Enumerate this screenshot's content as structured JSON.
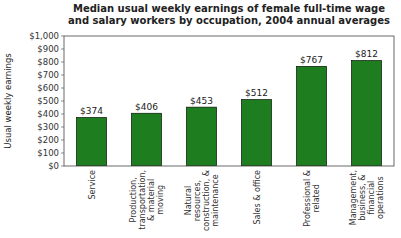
{
  "chart_data": {
    "type": "bar",
    "title": "Median usual weekly earnings of female full-time wage\nand salary workers by occupation, 2004 annual averages",
    "ylabel": "Usual weekly earnings",
    "categories": [
      "Service",
      "Production,\ntransportation,\n& material\nmoving",
      "Natural\nresources,\nconstruction, &\nmaintenance",
      "Sales & office",
      "Professional &\nrelated",
      "Management,\nbusiness, &\nfinancial\noperations"
    ],
    "values": [
      374,
      406,
      453,
      512,
      767,
      812
    ],
    "value_labels": [
      "$374",
      "$406",
      "$453",
      "$512",
      "$767",
      "$812"
    ],
    "data_labels": true,
    "color": "#1e7d1e",
    "ylim": [
      0,
      1000
    ],
    "yticks": [
      {
        "value": 0,
        "label": "$0"
      },
      {
        "value": 100,
        "label": "$100"
      },
      {
        "value": 200,
        "label": "$200"
      },
      {
        "value": 300,
        "label": "$300"
      },
      {
        "value": 400,
        "label": "$400"
      },
      {
        "value": 500,
        "label": "$500"
      },
      {
        "value": 600,
        "label": "$600"
      },
      {
        "value": 700,
        "label": "$700"
      },
      {
        "value": 800,
        "label": "$800"
      },
      {
        "value": 900,
        "label": "$900"
      },
      {
        "value": 1000,
        "label": "$1,000"
      }
    ],
    "grid": false
  }
}
